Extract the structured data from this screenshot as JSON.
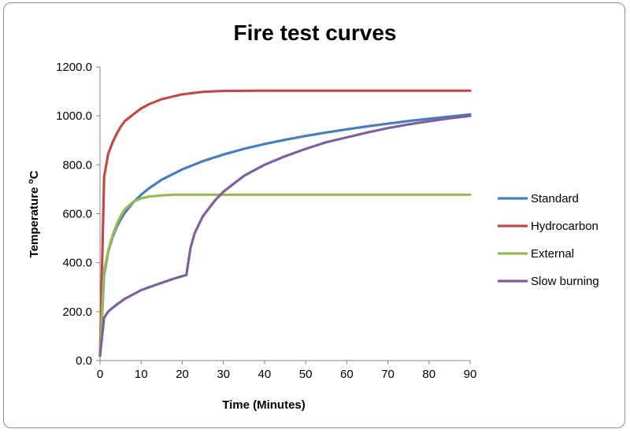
{
  "chart_data": {
    "type": "line",
    "title": "Fire test curves",
    "xlabel": "Time (Minutes)",
    "ylabel": "Temperature",
    "ylabel_unit": "oC",
    "xlim": [
      0,
      90
    ],
    "ylim": [
      0,
      1200
    ],
    "x_ticks": [
      "0",
      "10",
      "20",
      "30",
      "40",
      "50",
      "60",
      "70",
      "80",
      "90"
    ],
    "y_ticks": [
      "0.0",
      "200.0",
      "400.0",
      "600.0",
      "800.0",
      "1000.0",
      "1200.0"
    ],
    "grid": false,
    "legend_position": "right",
    "series": [
      {
        "name": "Standard",
        "color": "#4a7ebb",
        "x": [
          0,
          1,
          2,
          3,
          4,
          5,
          6,
          8,
          10,
          12,
          15,
          20,
          25,
          30,
          35,
          40,
          45,
          50,
          55,
          60,
          65,
          70,
          75,
          80,
          85,
          90
        ],
        "y": [
          20,
          350,
          445,
          502,
          544,
          576,
          603,
          645,
          678,
          705,
          739,
          781,
          815,
          842,
          865,
          885,
          902,
          918,
          932,
          945,
          957,
          968,
          979,
          988,
          997,
          1006
        ]
      },
      {
        "name": "Hydrocarbon",
        "color": "#be4b48",
        "x": [
          0,
          1,
          2,
          3,
          4,
          5,
          6,
          8,
          10,
          12,
          15,
          20,
          25,
          30,
          40,
          50,
          60,
          70,
          80,
          90
        ],
        "y": [
          20,
          750,
          845,
          890,
          925,
          955,
          978,
          1005,
          1030,
          1048,
          1068,
          1088,
          1098,
          1102,
          1103,
          1103,
          1103,
          1103,
          1103,
          1103
        ]
      },
      {
        "name": "External",
        "color": "#98b954",
        "x": [
          0,
          1,
          2,
          3,
          4,
          5,
          6,
          8,
          10,
          12,
          15,
          18,
          20,
          30,
          40,
          50,
          60,
          70,
          80,
          90
        ],
        "y": [
          20,
          365,
          448,
          510,
          555,
          590,
          618,
          648,
          663,
          670,
          675,
          678,
          678,
          678,
          678,
          678,
          678,
          678,
          678,
          678
        ]
      },
      {
        "name": "Slow burning",
        "color": "#7d60a0",
        "x": [
          0,
          1,
          2,
          3,
          4,
          5,
          6,
          8,
          10,
          12,
          15,
          18,
          20,
          21,
          22,
          23,
          25,
          28,
          30,
          35,
          40,
          45,
          50,
          55,
          60,
          65,
          70,
          75,
          80,
          85,
          90
        ],
        "y": [
          20,
          175,
          200,
          215,
          228,
          240,
          252,
          270,
          288,
          300,
          318,
          335,
          345,
          350,
          460,
          520,
          590,
          655,
          690,
          755,
          800,
          835,
          865,
          892,
          912,
          932,
          950,
          965,
          978,
          990,
          1000
        ]
      }
    ]
  }
}
